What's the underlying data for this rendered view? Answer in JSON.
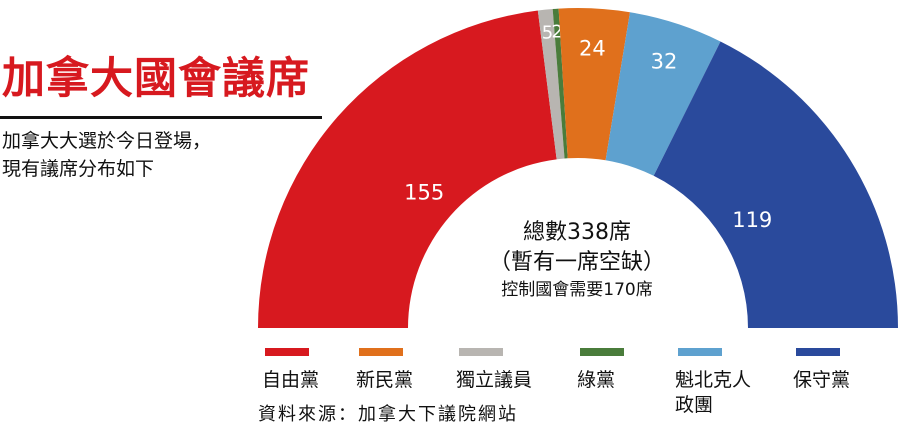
{
  "header": {
    "title": "加拿大國會議席",
    "subtitle_lines": [
      "加拿大大選於今日登場，",
      "現有議席分布如下"
    ]
  },
  "center": {
    "total": "總數338席",
    "vacancy": "（暫有一席空缺）",
    "majority": "控制國會需要170席"
  },
  "source": "資料來源：加拿大下議院網站",
  "chart_data": {
    "type": "pie",
    "style": "semicircle",
    "title": "加拿大國會議席",
    "total_seats": 338,
    "majority_needed": 170,
    "slices": [
      {
        "name": "自由黨",
        "value": 155,
        "color": "#d7191f",
        "label": "155"
      },
      {
        "name": "獨立議員",
        "value": 5,
        "color": "#b8b5b1",
        "label": "5"
      },
      {
        "name": "綠黨",
        "value": 2,
        "color": "#4a7c3b",
        "label": "2"
      },
      {
        "name": "新民黨",
        "value": 24,
        "color": "#e0701c",
        "label": "24"
      },
      {
        "name": "魁北克人政團",
        "value": 32,
        "color": "#5ea1cf",
        "label": "32"
      },
      {
        "name": "保守黨",
        "value": 119,
        "color": "#2a4a9c",
        "label": "119"
      }
    ],
    "legend": [
      {
        "lines": [
          "自由黨"
        ],
        "color": "#d7191f"
      },
      {
        "lines": [
          "新民黨"
        ],
        "color": "#e0701c"
      },
      {
        "lines": [
          "獨立議員"
        ],
        "color": "#b8b5b1"
      },
      {
        "lines": [
          "綠黨"
        ],
        "color": "#4a7c3b"
      },
      {
        "lines": [
          "魁北克人",
          "政團"
        ],
        "color": "#5ea1cf"
      },
      {
        "lines": [
          "保守黨"
        ],
        "color": "#2a4a9c"
      }
    ],
    "legend_placement": "bottom",
    "label_color": "#ffffff"
  }
}
